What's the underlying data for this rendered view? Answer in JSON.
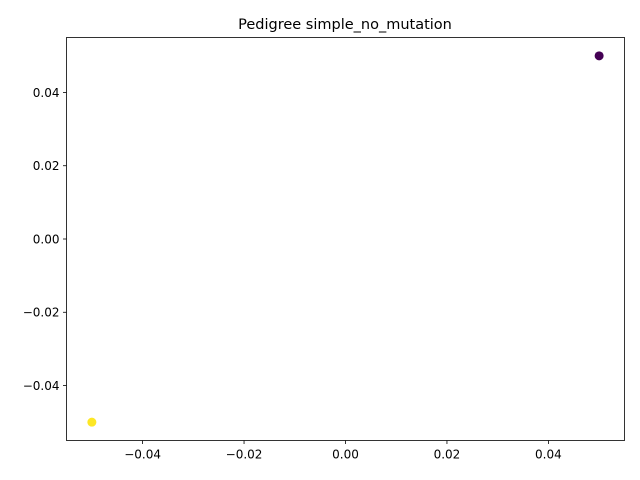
{
  "chart_data": {
    "type": "scatter",
    "title": "Pedigree simple_no_mutation",
    "xlabel": "",
    "ylabel": "",
    "xlim": [
      -0.055,
      0.055
    ],
    "ylim": [
      -0.055,
      0.055
    ],
    "x_ticks": [
      -0.04,
      -0.02,
      0.0,
      0.02,
      0.04
    ],
    "x_tick_labels": [
      "−0.04",
      "−0.02",
      "0.00",
      "0.02",
      "0.04"
    ],
    "y_ticks": [
      -0.04,
      -0.02,
      0.0,
      0.02,
      0.04
    ],
    "y_tick_labels": [
      "−0.04",
      "−0.02",
      "0.00",
      "0.02",
      "0.04"
    ],
    "grid": false,
    "legend": "none",
    "points": [
      {
        "x": 0.05,
        "y": 0.05,
        "color": "#440154"
      },
      {
        "x": -0.05,
        "y": -0.05,
        "color": "#fde725"
      }
    ]
  }
}
